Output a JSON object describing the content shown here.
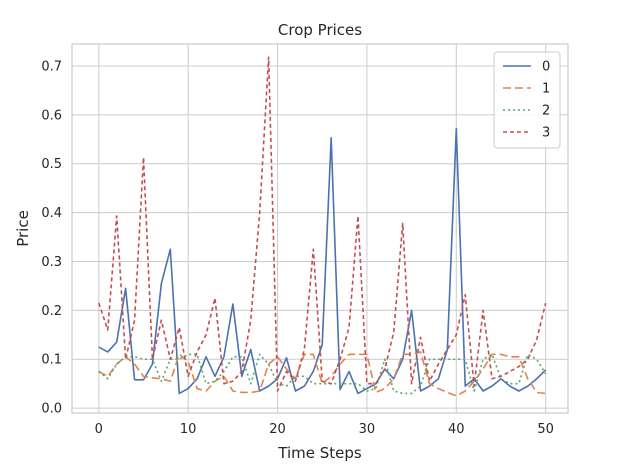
{
  "chart_data": {
    "type": "line",
    "title": "Crop Prices",
    "xlabel": "Time Steps",
    "ylabel": "Price",
    "xlim": [
      -3,
      52.5
    ],
    "ylim": [
      -0.01,
      0.745
    ],
    "xticks": [
      0,
      10,
      20,
      30,
      40,
      50
    ],
    "yticks": [
      0.0,
      0.1,
      0.2,
      0.3,
      0.4,
      0.5,
      0.6,
      0.7
    ],
    "grid": true,
    "legend_position": "top-right",
    "x": [
      0,
      1,
      2,
      3,
      4,
      5,
      6,
      7,
      8,
      9,
      10,
      11,
      12,
      13,
      14,
      15,
      16,
      17,
      18,
      19,
      20,
      21,
      22,
      23,
      24,
      25,
      26,
      27,
      28,
      29,
      30,
      31,
      32,
      33,
      34,
      35,
      36,
      37,
      38,
      39,
      40,
      41,
      42,
      43,
      44,
      45,
      46,
      47,
      48,
      49,
      50
    ],
    "series": [
      {
        "name": "0",
        "color": "#4c72b0",
        "dash": "solid",
        "values": [
          0.125,
          0.115,
          0.135,
          0.245,
          0.058,
          0.058,
          0.09,
          0.255,
          0.325,
          0.03,
          0.04,
          0.06,
          0.105,
          0.065,
          0.105,
          0.213,
          0.065,
          0.12,
          0.035,
          0.045,
          0.06,
          0.103,
          0.035,
          0.045,
          0.075,
          0.13,
          0.553,
          0.038,
          0.075,
          0.03,
          0.04,
          0.05,
          0.08,
          0.06,
          0.1,
          0.2,
          0.035,
          0.045,
          0.06,
          0.12,
          0.572,
          0.045,
          0.06,
          0.035,
          0.045,
          0.06,
          0.045,
          0.035,
          0.045,
          0.06,
          0.078
        ]
      },
      {
        "name": "1",
        "color": "#dd8452",
        "dash": "8,4",
        "values": [
          0.075,
          0.065,
          0.09,
          0.105,
          0.09,
          0.065,
          0.062,
          0.06,
          0.055,
          0.11,
          0.095,
          0.04,
          0.035,
          0.055,
          0.065,
          0.035,
          0.032,
          0.032,
          0.035,
          0.09,
          0.105,
          0.08,
          0.06,
          0.11,
          0.11,
          0.05,
          0.065,
          0.09,
          0.11,
          0.11,
          0.11,
          0.032,
          0.04,
          0.06,
          0.11,
          0.11,
          0.115,
          0.05,
          0.04,
          0.032,
          0.025,
          0.035,
          0.055,
          0.08,
          0.11,
          0.11,
          0.105,
          0.105,
          0.06,
          0.032,
          0.03
        ]
      },
      {
        "name": "2",
        "color": "#55a868",
        "dash": "2,3",
        "values": [
          0.075,
          0.06,
          0.09,
          0.105,
          0.105,
          0.1,
          0.1,
          0.055,
          0.1,
          0.1,
          0.11,
          0.11,
          0.05,
          0.055,
          0.075,
          0.105,
          0.105,
          0.05,
          0.11,
          0.09,
          0.05,
          0.045,
          0.065,
          0.065,
          0.05,
          0.05,
          0.05,
          0.05,
          0.05,
          0.05,
          0.035,
          0.04,
          0.1,
          0.035,
          0.03,
          0.03,
          0.045,
          0.1,
          0.1,
          0.1,
          0.1,
          0.1,
          0.035,
          0.1,
          0.11,
          0.06,
          0.05,
          0.05,
          0.11,
          0.1,
          0.07
        ]
      },
      {
        "name": "3",
        "color": "#c44e52",
        "dash": "4,3",
        "values": [
          0.215,
          0.16,
          0.393,
          0.1,
          0.18,
          0.513,
          0.1,
          0.18,
          0.1,
          0.165,
          0.065,
          0.115,
          0.15,
          0.225,
          0.05,
          0.055,
          0.075,
          0.18,
          0.4,
          0.718,
          0.035,
          0.075,
          0.055,
          0.12,
          0.325,
          0.055,
          0.05,
          0.1,
          0.165,
          0.393,
          0.05,
          0.05,
          0.08,
          0.155,
          0.378,
          0.05,
          0.145,
          0.055,
          0.09,
          0.12,
          0.15,
          0.232,
          0.045,
          0.2,
          0.06,
          0.065,
          0.075,
          0.085,
          0.1,
          0.14,
          0.215
        ]
      }
    ]
  }
}
